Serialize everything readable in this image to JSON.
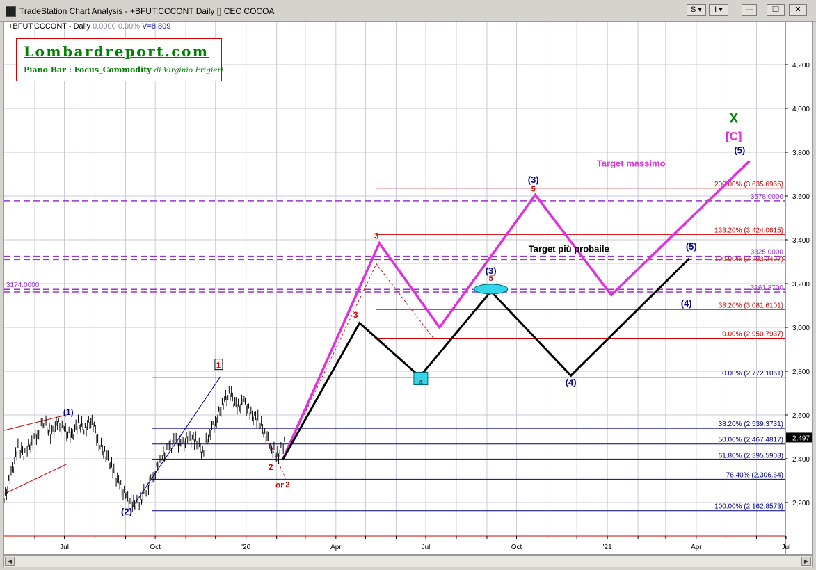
{
  "window": {
    "title": "TradeStation Chart Analysis - +BFUT:CCCONT Daily [] CEC COCOA",
    "buttons": {
      "s_menu": "S ▾",
      "i_menu": "I ▾",
      "minimize": "—",
      "restore": "❐",
      "close": "✕"
    }
  },
  "header": {
    "symbol": "+BFUT:CCCONT - Daily",
    "last": "0.0000",
    "change": "0.00%",
    "volume": "V=8,809"
  },
  "logo": {
    "brand": "Lombardreport.com",
    "subtitle": "Piano Bar : Focus_Commodity",
    "author": "di Virginio Frigieri"
  },
  "colors": {
    "magenta": "#e030e0",
    "black": "#000000",
    "red": "#d00000",
    "navy": "#00008b",
    "purple": "#9933cc",
    "green": "#008000",
    "cyan": "#33d6e8",
    "grid": "#c8c8d8"
  },
  "chart_data": {
    "type": "line",
    "title": "",
    "price_axis": {
      "min": 2100,
      "max": 4400,
      "ticks": [
        2200,
        2400,
        2600,
        2800,
        3000,
        3200,
        3400,
        3600,
        3800,
        4000,
        4200
      ],
      "tick_labels": [
        "2,200",
        "2,400",
        "2,600",
        "2,800",
        "3,000",
        "3,200",
        "3,400",
        "3,600",
        "3,800",
        "4,000",
        "4,200"
      ]
    },
    "last_price": 2497,
    "last_price_label": "2,497",
    "time_axis": {
      "start": "2019-05-01",
      "end": "2021-08-01",
      "labels": [
        {
          "date": "2019-07-01",
          "text": "Jul"
        },
        {
          "date": "2019-10-01",
          "text": "Oct"
        },
        {
          "date": "2020-01-01",
          "text": "'20"
        },
        {
          "date": "2020-04-01",
          "text": "Apr"
        },
        {
          "date": "2020-07-01",
          "text": "Jul"
        },
        {
          "date": "2020-10-01",
          "text": "Oct"
        },
        {
          "date": "2021-01-01",
          "text": "'21"
        },
        {
          "date": "2021-04-01",
          "text": "Apr"
        },
        {
          "date": "2021-07-01",
          "text": "Jul"
        }
      ],
      "gridlines": [
        "2019-06-01",
        "2019-07-01",
        "2019-08-01",
        "2019-09-01",
        "2019-10-01",
        "2019-11-01",
        "2019-12-01",
        "2020-01-01",
        "2020-02-01",
        "2020-03-01",
        "2020-04-01",
        "2020-05-01",
        "2020-06-01",
        "2020-07-01",
        "2020-08-01",
        "2020-09-01",
        "2020-10-01",
        "2020-11-01",
        "2020-12-01",
        "2021-01-01",
        "2021-02-01",
        "2021-03-01",
        "2021-04-01",
        "2021-05-01",
        "2021-06-01",
        "2021-07-01"
      ]
    },
    "price_series": [
      [
        "2019-05-01",
        2210
      ],
      [
        "2019-05-08",
        2330
      ],
      [
        "2019-05-15",
        2450
      ],
      [
        "2019-05-22",
        2420
      ],
      [
        "2019-05-29",
        2480
      ],
      [
        "2019-06-05",
        2520
      ],
      [
        "2019-06-10",
        2575
      ],
      [
        "2019-06-17",
        2510
      ],
      [
        "2019-06-24",
        2560
      ],
      [
        "2019-07-01",
        2530
      ],
      [
        "2019-07-08",
        2500
      ],
      [
        "2019-07-15",
        2560
      ],
      [
        "2019-07-22",
        2540
      ],
      [
        "2019-07-29",
        2580
      ],
      [
        "2019-08-05",
        2470
      ],
      [
        "2019-08-12",
        2420
      ],
      [
        "2019-08-19",
        2350
      ],
      [
        "2019-08-26",
        2280
      ],
      [
        "2019-09-02",
        2220
      ],
      [
        "2019-09-09",
        2190
      ],
      [
        "2019-09-16",
        2210
      ],
      [
        "2019-09-23",
        2270
      ],
      [
        "2019-09-30",
        2330
      ],
      [
        "2019-10-07",
        2400
      ],
      [
        "2019-10-14",
        2440
      ],
      [
        "2019-10-21",
        2480
      ],
      [
        "2019-10-28",
        2460
      ],
      [
        "2019-11-04",
        2500
      ],
      [
        "2019-11-11",
        2480
      ],
      [
        "2019-11-18",
        2430
      ],
      [
        "2019-11-25",
        2520
      ],
      [
        "2019-12-02",
        2580
      ],
      [
        "2019-12-09",
        2660
      ],
      [
        "2019-12-16",
        2700
      ],
      [
        "2019-12-23",
        2630
      ],
      [
        "2019-12-30",
        2660
      ],
      [
        "2020-01-06",
        2600
      ],
      [
        "2020-01-13",
        2580
      ],
      [
        "2020-01-20",
        2520
      ],
      [
        "2020-01-27",
        2450
      ],
      [
        "2020-02-03",
        2420
      ],
      [
        "2020-02-10",
        2480
      ]
    ],
    "scenarios": [
      {
        "color": "magenta",
        "points": [
          [
            "2020-02-07",
            2395
          ],
          [
            "2020-05-15",
            3385
          ],
          [
            "2020-07-15",
            3000
          ],
          [
            "2020-10-20",
            3605
          ],
          [
            "2021-01-05",
            3148
          ],
          [
            "2021-05-25",
            3760
          ]
        ]
      },
      {
        "color": "black",
        "points": [
          [
            "2020-02-07",
            2395
          ],
          [
            "2020-04-25",
            3020
          ],
          [
            "2020-06-25",
            2775
          ],
          [
            "2020-09-05",
            3165
          ],
          [
            "2020-11-25",
            2780
          ],
          [
            "2021-03-25",
            3315
          ]
        ]
      }
    ],
    "fib_levels": [
      {
        "price": 3635.6965,
        "label": "200.00% (3,635.6965)",
        "color": "red",
        "start": "2020-05-12"
      },
      {
        "price": 3424.0615,
        "label": "138.20% (3,424.0615)",
        "color": "red",
        "start": "2020-05-12"
      },
      {
        "price": 3293.2497,
        "label": "100.00% (3,293.2497)",
        "color": "red",
        "start": "2020-05-12"
      },
      {
        "price": 3081.6101,
        "label": "38.20% (3,081.6101)",
        "color": "red",
        "start": "2020-05-12"
      },
      {
        "price": 2950.7937,
        "label": "0.00% (2,950.7937)",
        "color": "red",
        "start": "2020-05-12"
      },
      {
        "price": 2772.1061,
        "label": "0.00% (2,772.1061)",
        "color": "navy",
        "start": "2019-09-28"
      },
      {
        "price": 2539.3731,
        "label": "38.20% (2,539.3731)",
        "color": "navy",
        "start": "2019-09-28"
      },
      {
        "price": 2467.4817,
        "label": "50.00% (2,467.4817)",
        "color": "navy",
        "start": "2019-09-28"
      },
      {
        "price": 2395.5903,
        "label": "61.80% (2,395.5903)",
        "color": "navy",
        "start": "2019-09-28"
      },
      {
        "price": 2306.64,
        "label": "76.40% (2,306.64)",
        "color": "navy",
        "start": "2019-09-28"
      },
      {
        "price": 2162.8573,
        "label": "100.00% (2,162.8573)",
        "color": "navy",
        "start": "2019-09-28"
      }
    ],
    "dashed_levels": [
      {
        "price": 3578,
        "label": "3578.0000"
      },
      {
        "price": 3325,
        "label": "3325.0000"
      },
      {
        "price": 3310,
        "label": ""
      },
      {
        "price": 3174,
        "label": "3174.0000"
      },
      {
        "price": 3161.87,
        "label": "3161.8700"
      }
    ],
    "annotations": [
      {
        "text": "Target massimo",
        "date": "2021-01-25",
        "price": 3735,
        "color": "magenta",
        "size": 13
      },
      {
        "text": "Target più probaile",
        "date": "2020-11-23",
        "price": 3345,
        "color": "black",
        "size": 13
      },
      {
        "text": "X",
        "date": "2021-05-09",
        "price": 3935,
        "color": "green",
        "size": 19
      },
      {
        "text": "[C]",
        "date": "2021-05-09",
        "price": 3855,
        "color": "magenta",
        "size": 17
      },
      {
        "text": "(5)",
        "date": "2021-05-15",
        "price": 3795,
        "color": "navy",
        "size": 13
      },
      {
        "text": "(5)",
        "date": "2021-03-27",
        "price": 3355,
        "color": "navy",
        "size": 13
      },
      {
        "text": "(3)",
        "date": "2020-10-18",
        "price": 3660,
        "color": "navy",
        "size": 13
      },
      {
        "text": "5",
        "date": "2020-10-18",
        "price": 3620,
        "color": "red",
        "size": 11
      },
      {
        "text": "(3)",
        "date": "2020-09-05",
        "price": 3245,
        "color": "navy",
        "size": 13
      },
      {
        "text": "5",
        "date": "2020-09-05",
        "price": 3212,
        "color": "red",
        "size": 11
      },
      {
        "text": "3",
        "date": "2020-05-12",
        "price": 3405,
        "color": "red",
        "size": 12
      },
      {
        "text": "3",
        "date": "2020-04-21",
        "price": 3045,
        "color": "red",
        "size": 12
      },
      {
        "text": "4",
        "date": "2020-06-26",
        "price": 2735,
        "color": "red",
        "size": 12
      },
      {
        "text": "(4)",
        "date": "2020-11-25",
        "price": 2735,
        "color": "navy",
        "size": 13
      },
      {
        "text": "(4)",
        "date": "2021-03-22",
        "price": 3095,
        "color": "navy",
        "size": 13
      },
      {
        "text": "2",
        "date": "2020-01-26",
        "price": 2350,
        "color": "red",
        "size": 12
      },
      {
        "text": "or",
        "date": "2020-02-04",
        "price": 2268,
        "color": "red",
        "size": 12
      },
      {
        "text": "2",
        "date": "2020-02-12",
        "price": 2272,
        "color": "red",
        "size": 11
      },
      {
        "text": "(1)",
        "date": "2019-07-05",
        "price": 2600,
        "color": "navy",
        "size": 12
      },
      {
        "text": "(2)",
        "date": "2019-09-02",
        "price": 2145,
        "color": "navy",
        "size": 13
      },
      {
        "text": "1",
        "date": "2019-12-04",
        "price": 2815,
        "color": "red",
        "size": 12
      }
    ]
  }
}
